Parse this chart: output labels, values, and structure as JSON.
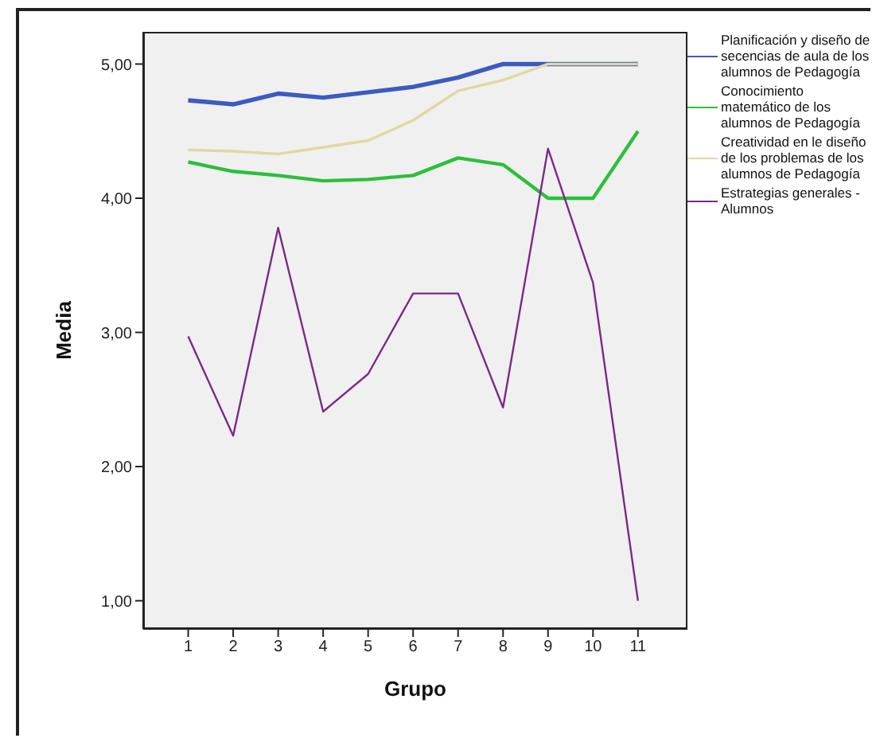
{
  "chart_data": {
    "type": "line",
    "xlabel": "Grupo",
    "ylabel": "Media",
    "x": [
      1,
      2,
      3,
      4,
      5,
      6,
      7,
      8,
      9,
      10,
      11
    ],
    "xlim": [
      0,
      12.1
    ],
    "xticks": [
      1,
      2,
      3,
      4,
      5,
      6,
      7,
      8,
      9,
      10,
      11
    ],
    "ylim": [
      0.79,
      5.24
    ],
    "yticks": [
      {
        "value": 1,
        "label": "1,00"
      },
      {
        "value": 2,
        "label": "2,00"
      },
      {
        "value": 3,
        "label": "3,00"
      },
      {
        "value": 4,
        "label": "4,00"
      },
      {
        "value": 5,
        "label": "5,00"
      }
    ],
    "legend": "right",
    "marker": "none",
    "line_style": "solid",
    "series": [
      {
        "name": "Planificación y diseño de secencias de aula de los alumnos de Pedagogía",
        "color": "#3b5bbf",
        "values": [
          4.73,
          4.7,
          4.78,
          4.75,
          4.79,
          4.83,
          4.9,
          5,
          5,
          5,
          5
        ]
      },
      {
        "name": "Conocimiento matemático de los alumnos de Pedagogía",
        "color": "#2cbf3c",
        "values": [
          4.27,
          4.2,
          4.17,
          4.13,
          4.14,
          4.17,
          4.3,
          4.25,
          4,
          4,
          4.5
        ]
      },
      {
        "name": "Creatividad en le diseño de los problemas de los alumnos de Pedagogía",
        "color": "#e0d8a0",
        "values": [
          4.36,
          4.35,
          4.33,
          4.38,
          4.43,
          4.58,
          4.8,
          4.88,
          5,
          5,
          5
        ]
      },
      {
        "name": "Estrategias generales - Alumnos",
        "color": "#7b2a88",
        "values": [
          2.97,
          2.23,
          3.78,
          2.41,
          2.69,
          3.29,
          3.29,
          2.44,
          4.37,
          3.37,
          1
        ]
      }
    ]
  }
}
